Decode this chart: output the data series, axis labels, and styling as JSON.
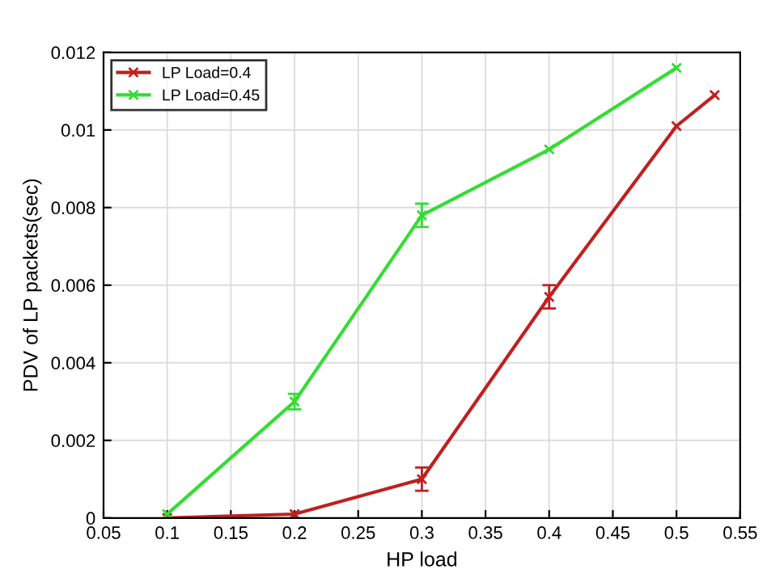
{
  "chart_data": {
    "type": "line",
    "xlabel": "HP load",
    "ylabel": "PDV of LP packets(sec)",
    "xlim": [
      0.05,
      0.55
    ],
    "xticks": [
      0.05,
      0.1,
      0.15,
      0.2,
      0.25,
      0.3,
      0.35,
      0.4,
      0.45,
      0.5,
      0.55
    ],
    "ylim": [
      0,
      0.012
    ],
    "yticks": [
      0,
      0.002,
      0.004,
      0.006,
      0.008,
      0.01,
      0.012
    ],
    "grid": true,
    "legend": "top left",
    "marker": "cross",
    "line_style": "solid",
    "series": [
      {
        "name": "LP Load=0.4",
        "color": "#c02020",
        "x": [
          0.1,
          0.2,
          0.3,
          0.4,
          0.5,
          0.53
        ],
        "values": [
          0,
          0.0001,
          0.001,
          0.0057,
          0.0101,
          0.0109
        ],
        "errors": [
          null,
          null,
          0.0003,
          0.0003,
          null,
          null
        ]
      },
      {
        "name": "LP Load=0.45",
        "color": "#33dd33",
        "x": [
          0.1,
          0.2,
          0.3,
          0.4,
          0.5
        ],
        "values": [
          0.0001,
          0.003,
          0.0078,
          0.0095,
          0.0116
        ],
        "errors": [
          null,
          0.0002,
          0.0003,
          null,
          null
        ]
      }
    ]
  }
}
